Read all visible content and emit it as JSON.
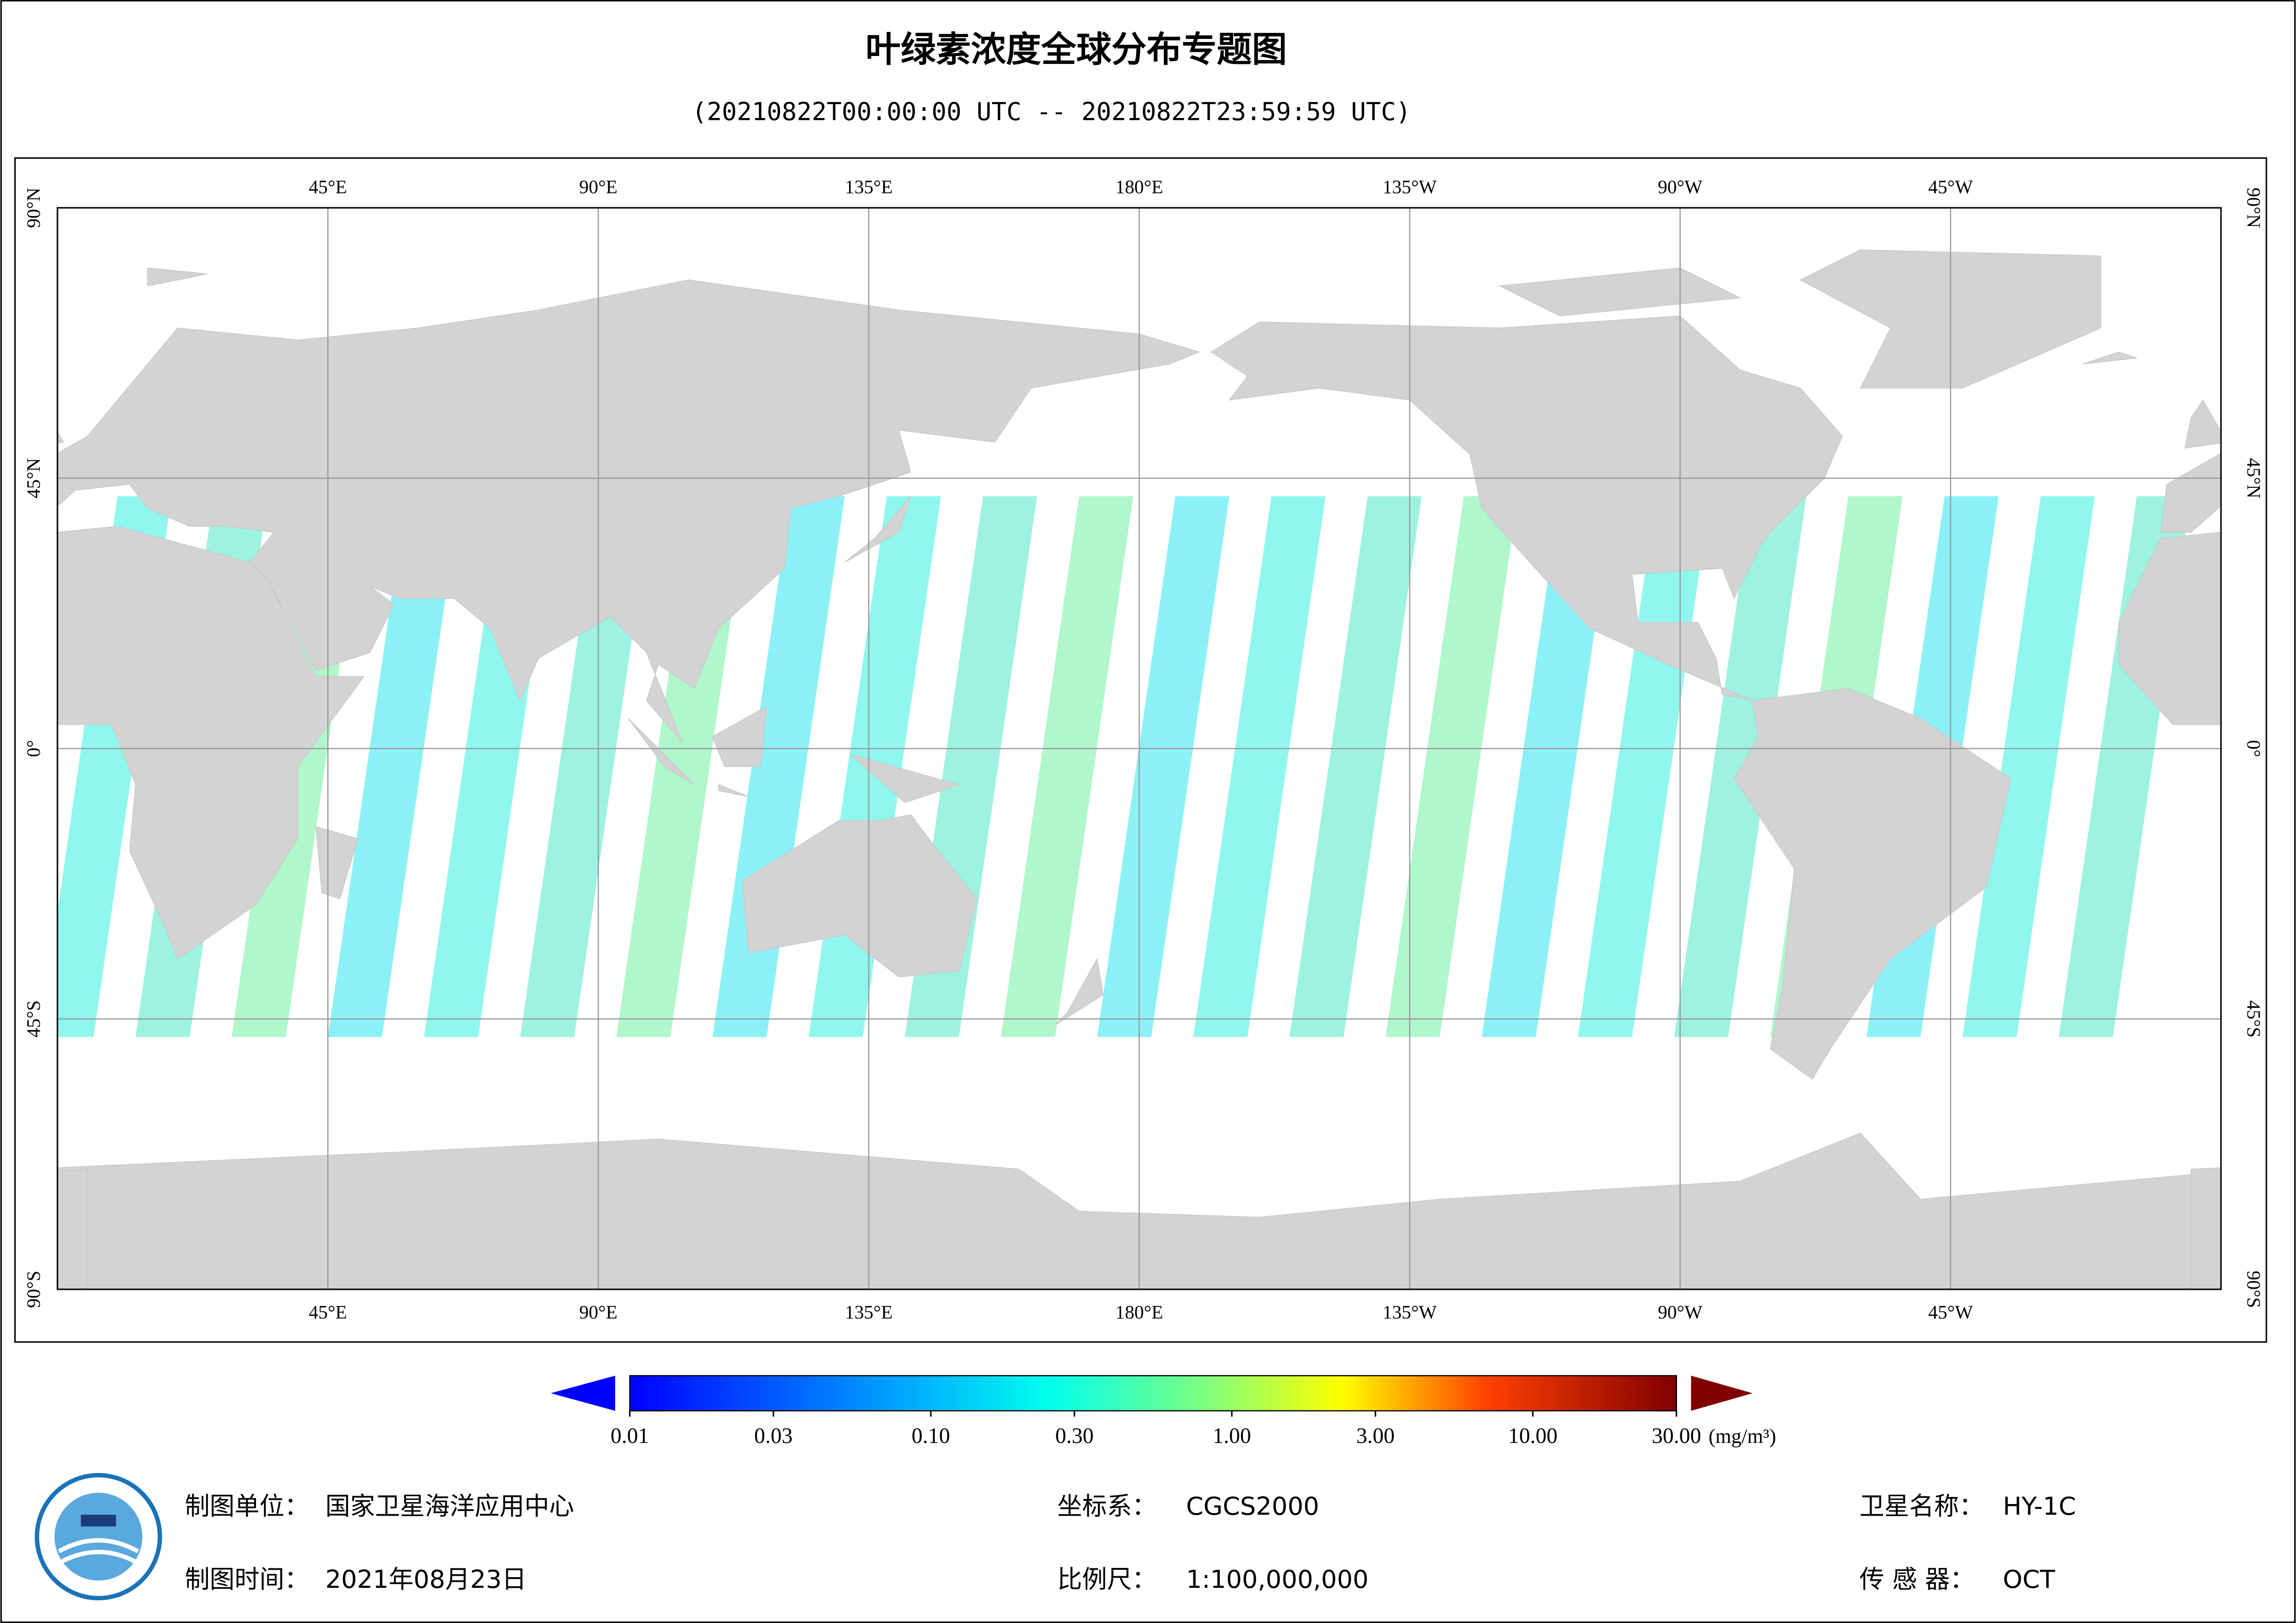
{
  "header": {
    "title": "叶绿素浓度全球分布专题图",
    "subtitle": "(20210822T00:00:00 UTC -- 20210822T23:59:59 UTC)"
  },
  "map": {
    "lon_labels": [
      "45°E",
      "90°E",
      "135°E",
      "180°E",
      "135°W",
      "90°W",
      "45°W"
    ],
    "lat_labels": [
      "90°N",
      "45°N",
      "0°",
      "45°S",
      "90°S"
    ]
  },
  "colorbar": {
    "log_scale": true,
    "lim": [
      0.01,
      30
    ],
    "ticks": [
      {
        "value": 0.01,
        "label": "0.01"
      },
      {
        "value": 0.03,
        "label": "0.03"
      },
      {
        "value": 0.1,
        "label": "0.10"
      },
      {
        "value": 0.3,
        "label": "0.30"
      },
      {
        "value": 1,
        "label": "1.00"
      },
      {
        "value": 3,
        "label": "3.00"
      },
      {
        "value": 10,
        "label": "10.00"
      },
      {
        "value": 30,
        "label": "30.00"
      }
    ],
    "unit": "(mg/m³)"
  },
  "footer": {
    "unit_label": "制图单位：",
    "unit": "国家卫星海洋应用中心",
    "time_label": "制图时间：",
    "time": "2021年08月23日",
    "crs_label": "坐标系：",
    "crs": "CGCS2000",
    "scale_label": "比例尺：",
    "scale": "1:100,000,000",
    "satellite_label": "卫星名称：",
    "satellite": "HY-1C",
    "sensor_label": "传 感 器：",
    "sensor": "OCT"
  }
}
